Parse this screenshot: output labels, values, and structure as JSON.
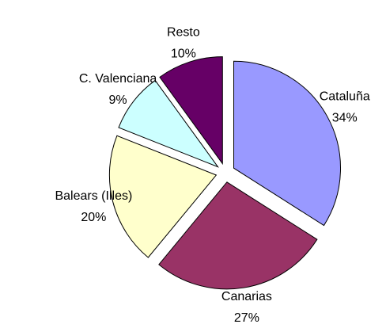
{
  "chart_data": {
    "type": "pie",
    "categories": [
      "Cataluña",
      "Canarias",
      "Balears (Illes)",
      "C. Valenciana",
      "Resto"
    ],
    "values": [
      34,
      27,
      20,
      9,
      10
    ],
    "value_labels": [
      "34%",
      "27%",
      "20%",
      "9%",
      "10%"
    ],
    "colors": [
      "#9999ff",
      "#993366",
      "#ffffcc",
      "#ccffff",
      "#660066"
    ],
    "exploded": true
  }
}
